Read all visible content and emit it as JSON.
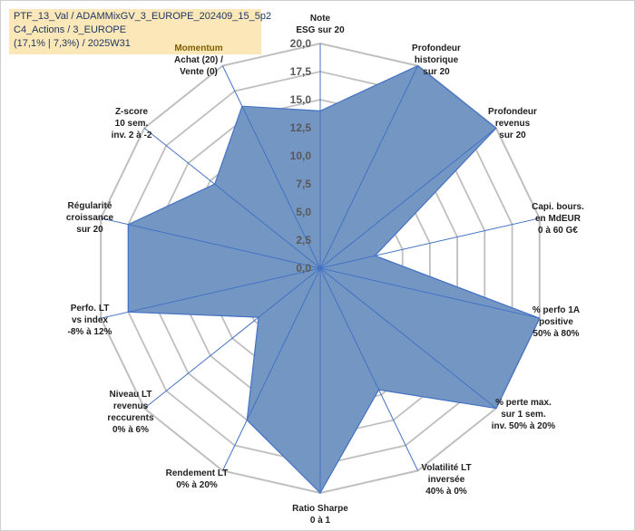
{
  "header": {
    "line1": "PTF_13_Val / ADAMMixGV_3_EUROPE_202409_15_5p2",
    "line2": "C4_Actions / 3_EUROPE",
    "line3": "(17,1% | 7,3%) / 2025W31"
  },
  "colors": {
    "fill": "#7396c3",
    "stroke": "#4472c4",
    "grid": "#bfbfbf",
    "axis": "#4472c4",
    "highlight_bg": "#fbe7b8"
  },
  "chart_data": {
    "type": "radar",
    "rmin": 0,
    "rmax": 20,
    "ticks": [
      "0,0",
      "2,5",
      "5,0",
      "7,5",
      "10,0",
      "12,5",
      "15,0",
      "17,5",
      "20,0"
    ],
    "tick_values": [
      0,
      2.5,
      5,
      7.5,
      10,
      12.5,
      15,
      17.5,
      20
    ],
    "grid": true,
    "axes": [
      {
        "label": [
          "Note",
          "ESG sur 20"
        ],
        "value": 14.0
      },
      {
        "label": [
          "Profondeur",
          "historique",
          "sur 20"
        ],
        "value": 20.0
      },
      {
        "label": [
          "Profondeur",
          "revenus",
          "sur 20"
        ],
        "value": 20.0
      },
      {
        "label": [
          "Capi. bours.",
          "en MdEUR",
          "0 à 60 G€"
        ],
        "value": 5.0
      },
      {
        "label": [
          "% perfo 1A",
          "positive",
          "50% à 80%"
        ],
        "value": 20.0
      },
      {
        "label": [
          "% perte max.",
          "sur 1 sem.",
          "inv. 50% à 20%"
        ],
        "value": 20.0
      },
      {
        "label": [
          "Volatilité LT",
          "inversée",
          "40% à 0%"
        ],
        "value": 12.0
      },
      {
        "label": [
          "Ratio Sharpe",
          "0 à 1"
        ],
        "value": 20.0
      },
      {
        "label": [
          "Rendement LT",
          "0% à 20%"
        ],
        "value": 15.0
      },
      {
        "label": [
          "Niveau LT",
          "revenus",
          "reccurents",
          "0% à 6%"
        ],
        "value": 7.0
      },
      {
        "label": [
          "Perfo. LT",
          "vs index",
          "-8% à 12%"
        ],
        "value": 17.5
      },
      {
        "label": [
          "Régularité",
          "croissance",
          "sur 20"
        ],
        "value": 17.5
      },
      {
        "label": [
          "Z-score",
          "10 sem.",
          "inv. 2 à -2"
        ],
        "value": 12.0
      },
      {
        "label": [
          "Momentum",
          "Achat (20) /",
          "Vente (0)"
        ],
        "value": 16.0,
        "highlight_first_line": true
      }
    ]
  }
}
